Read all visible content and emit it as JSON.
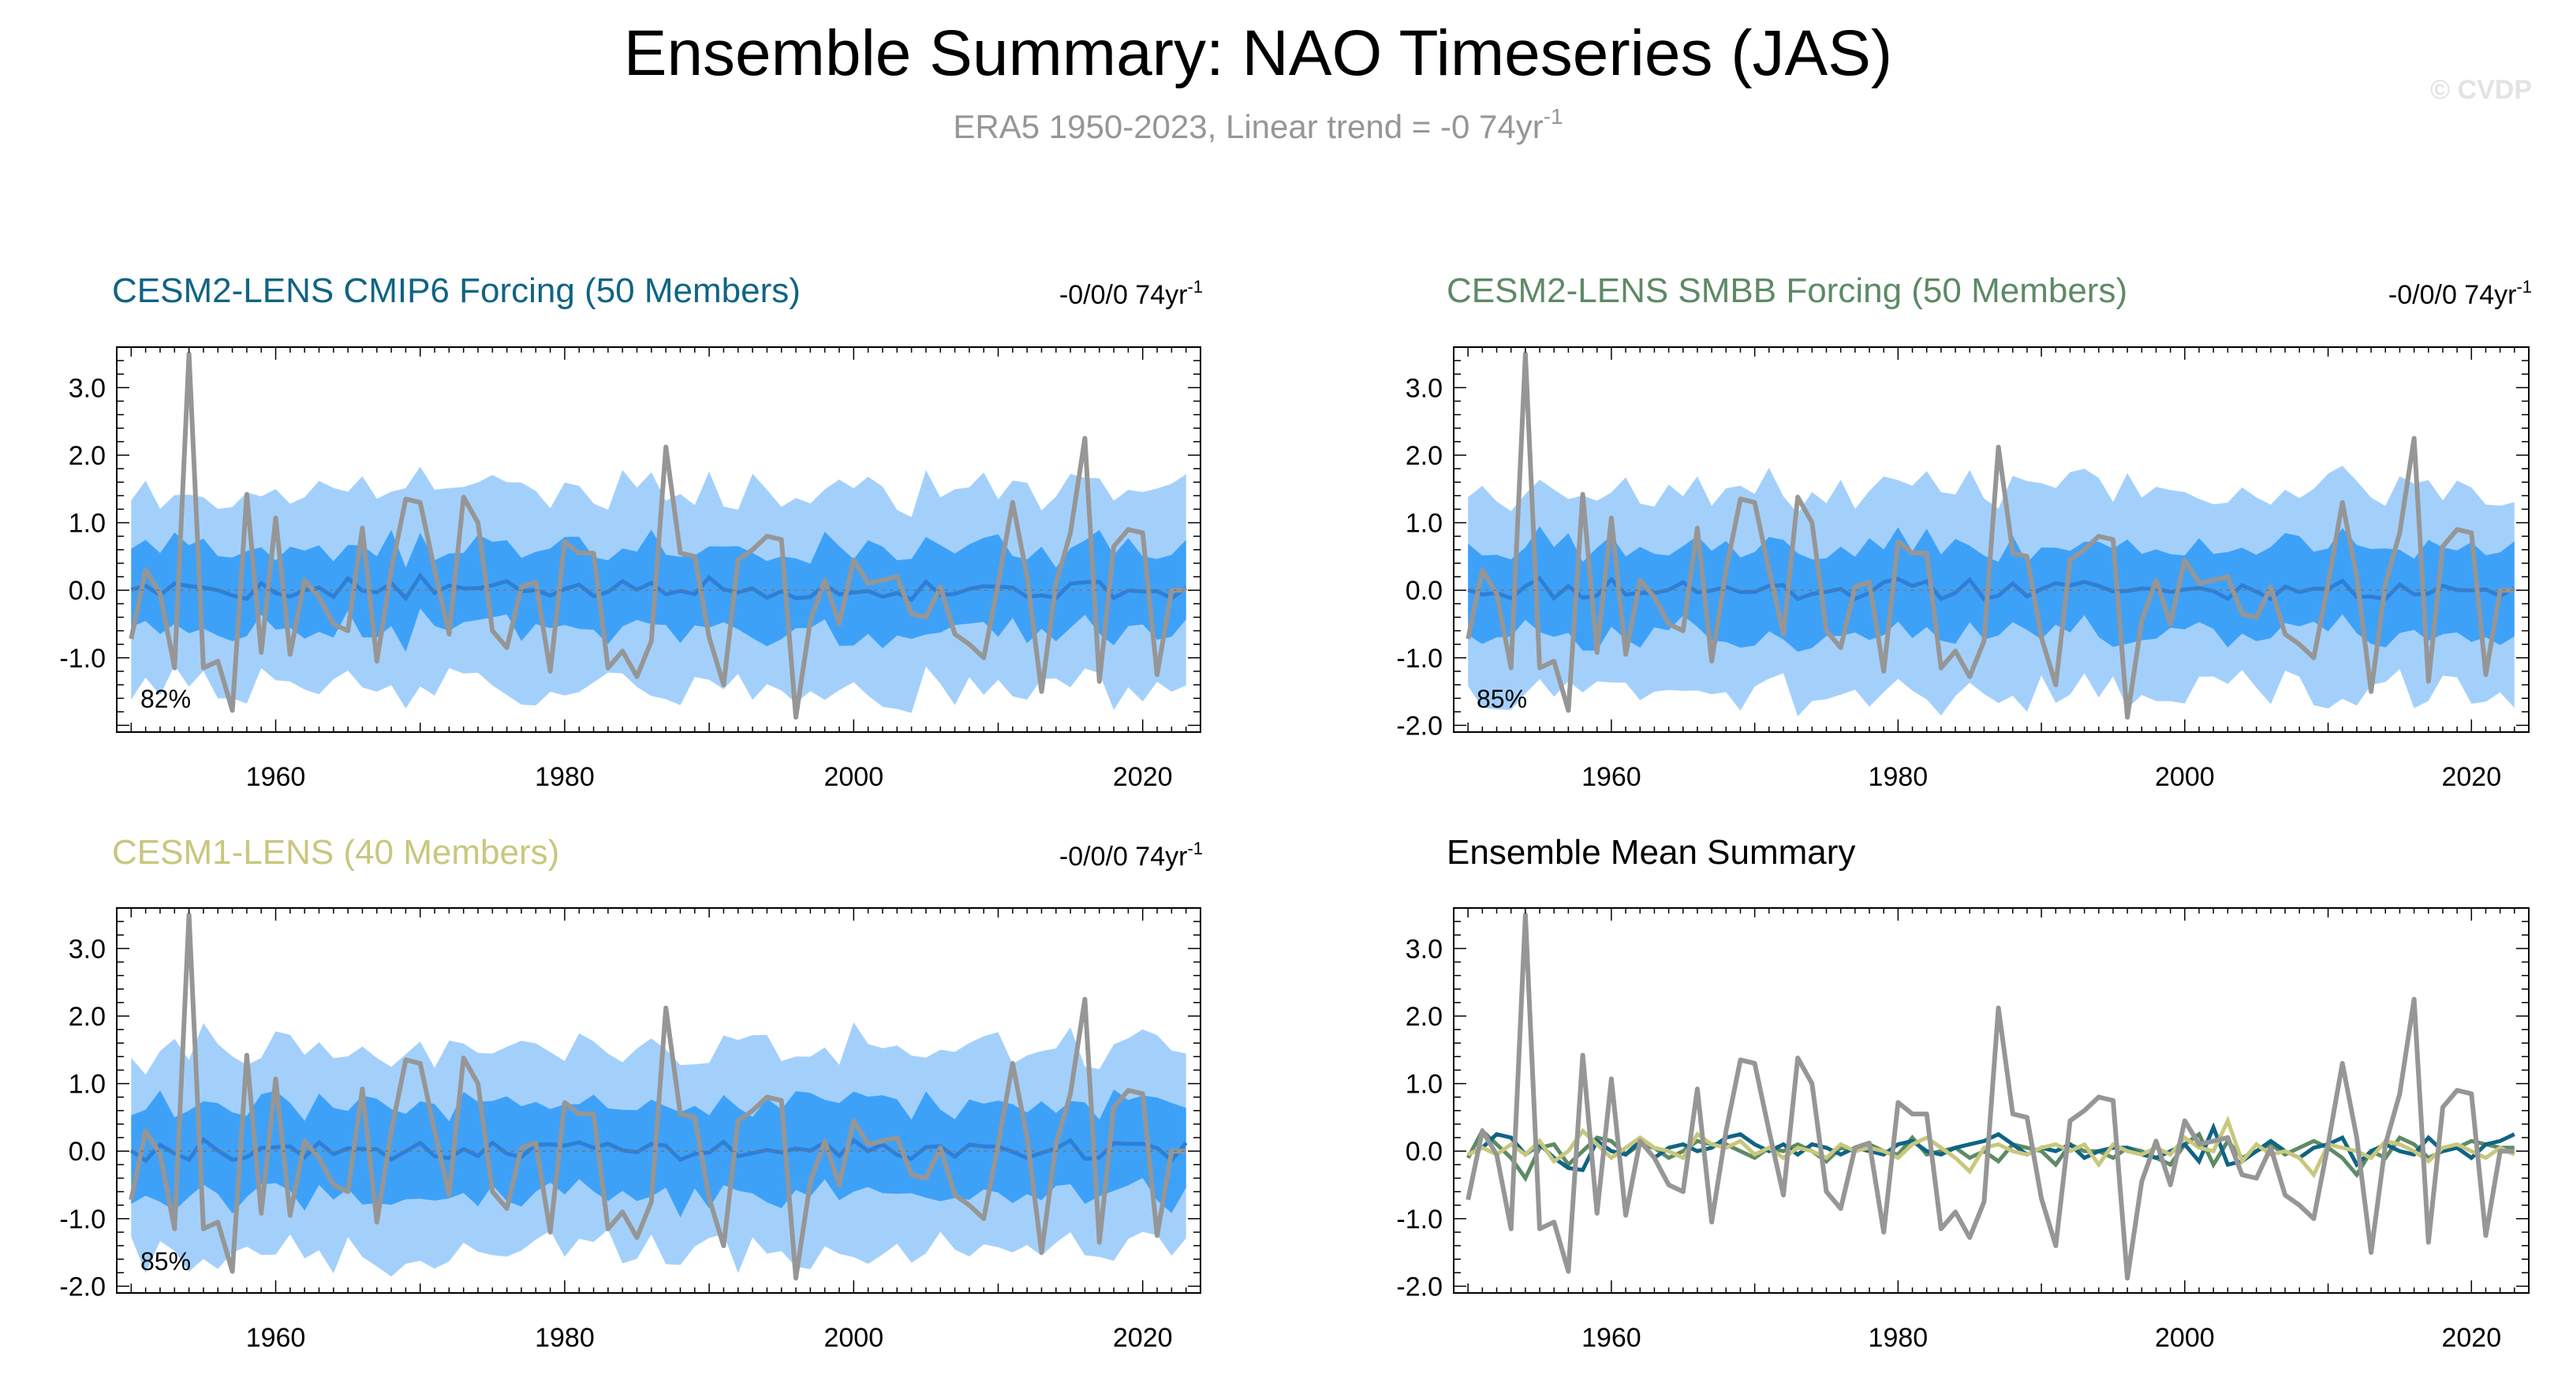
{
  "figure": {
    "title": "Ensemble Summary: NAO Timeseries (JAS)",
    "subtitle_main": "ERA5 1950-2023, Linear trend = -0 74yr",
    "subtitle_sup": "-1",
    "watermark": "© CVDP"
  },
  "colors": {
    "obs": "#969696",
    "band_outer": "#a3d0fb",
    "band_inner": "#3ea1f8",
    "ens_mean_line": "#2f7fd4",
    "cmip6": "#0f6483",
    "smbb": "#5d8a65",
    "cesm1": "#c8c77d"
  },
  "chart_data": [
    {
      "type": "line",
      "panel": "cmip6",
      "title": "CESM2-LENS CMIP6 Forcing (50 Members)",
      "title_color": "#0f6483",
      "trend_text": "-0/0/0 74yr",
      "trend_sup": "-1",
      "percent": "82%",
      "x_range": [
        1949,
        2024
      ],
      "ylim": [
        -2.1,
        3.6
      ],
      "y_ticks": [
        3.0,
        2.0,
        1.0,
        0.0,
        -1.0
      ],
      "y_tick_labels": [
        "3.0",
        "2.0",
        "1.0",
        "0.0",
        "-1.0"
      ],
      "x_ticks": [
        1960,
        1980,
        2000,
        2020
      ],
      "x_tick_labels": [
        "1960",
        "1980",
        "2000",
        "2020"
      ],
      "spread_seed": 17,
      "mean_seed": 5,
      "outer_base": 1.45,
      "inner_base": 0.62
    },
    {
      "type": "line",
      "panel": "smbb",
      "title": "CESM2-LENS SMBB Forcing (50 Members)",
      "title_color": "#5d8a65",
      "trend_text": "-0/0/0 74yr",
      "trend_sup": "-1",
      "percent": "85%",
      "x_range": [
        1949,
        2024
      ],
      "ylim": [
        -2.1,
        3.6
      ],
      "y_ticks": [
        3.0,
        2.0,
        1.0,
        0.0,
        -1.0,
        -2.0
      ],
      "y_tick_labels": [
        "3.0",
        "2.0",
        "1.0",
        "0.0",
        "-1.0",
        "-2.0"
      ],
      "x_ticks": [
        1960,
        1980,
        2000,
        2020
      ],
      "x_tick_labels": [
        "1960",
        "1980",
        "2000",
        "2020"
      ],
      "spread_seed": 23,
      "mean_seed": 11,
      "outer_base": 1.5,
      "inner_base": 0.66
    },
    {
      "type": "line",
      "panel": "cesm1",
      "title": "CESM1-LENS (40 Members)",
      "title_color": "#c8c77d",
      "trend_text": "-0/0/0 74yr",
      "trend_sup": "-1",
      "percent": "85%",
      "x_range": [
        1949,
        2024
      ],
      "ylim": [
        -2.1,
        3.6
      ],
      "y_ticks": [
        3.0,
        2.0,
        1.0,
        0.0,
        -1.0,
        -2.0
      ],
      "y_tick_labels": [
        "3.0",
        "2.0",
        "1.0",
        "0.0",
        "-1.0",
        "-2.0"
      ],
      "x_ticks": [
        1960,
        1980,
        2000,
        2020
      ],
      "x_tick_labels": [
        "1960",
        "1980",
        "2000",
        "2020"
      ],
      "spread_seed": 31,
      "mean_seed": 19,
      "outer_base": 1.5,
      "inner_base": 0.68
    },
    {
      "type": "line",
      "panel": "summary",
      "title": "Ensemble Mean Summary",
      "title_color": "#000000",
      "x_range": [
        1949,
        2024
      ],
      "ylim": [
        -2.1,
        3.6
      ],
      "y_ticks": [
        3.0,
        2.0,
        1.0,
        0.0,
        -1.0,
        -2.0
      ],
      "y_tick_labels": [
        "3.0",
        "2.0",
        "1.0",
        "0.0",
        "-1.0",
        "-2.0"
      ],
      "x_ticks": [
        1960,
        1980,
        2000,
        2020
      ],
      "x_tick_labels": [
        "1960",
        "1980",
        "2000",
        "2020"
      ]
    }
  ],
  "series": {
    "years_start": 1950,
    "years_end": 2023,
    "observed_era5": [
      -0.72,
      0.3,
      -0.05,
      -1.15,
      3.5,
      -1.15,
      -1.05,
      -1.78,
      1.42,
      -0.92,
      1.07,
      -0.95,
      0.15,
      -0.1,
      -0.5,
      -0.6,
      0.92,
      -1.05,
      0.3,
      1.35,
      1.3,
      0.3,
      -0.65,
      1.38,
      1.0,
      -0.6,
      -0.85,
      0.05,
      0.12,
      -1.2,
      0.72,
      0.55,
      0.55,
      -1.15,
      -0.9,
      -1.28,
      -0.75,
      2.12,
      0.55,
      0.5,
      -0.7,
      -1.4,
      0.45,
      0.6,
      0.8,
      0.75,
      -1.88,
      -0.45,
      0.15,
      -0.5,
      0.45,
      0.1,
      0.15,
      0.2,
      -0.35,
      -0.4,
      0.05,
      -0.65,
      -0.8,
      -1.0,
      0.1,
      1.3,
      0.2,
      -1.5,
      0.1,
      0.85,
      2.25,
      -1.35,
      0.65,
      0.9,
      0.85,
      -1.25,
      0.0,
      0.0
    ],
    "cmip6_mean": [
      -0.05,
      0.05,
      0.25,
      0.2,
      -0.05,
      0.1,
      -0.1,
      -0.25,
      -0.28,
      0.15,
      0.0,
      -0.05,
      0.15,
      -0.1,
      0.05,
      0.1,
      0.0,
      0.05,
      0.2,
      0.25,
      0.1,
      0.0,
      0.1,
      -0.05,
      0.1,
      0.05,
      -0.05,
      0.05,
      0.0,
      -0.05,
      0.1,
      0.15,
      0.0,
      -0.05,
      0.05,
      0.1,
      0.15,
      0.25,
      0.1,
      -0.05,
      0.05,
      0.0,
      0.1,
      -0.1,
      0.0,
      0.05,
      0.05,
      -0.05,
      -0.1,
      0.0,
      0.1,
      -0.15,
      0.35,
      -0.2,
      -0.15,
      0.0,
      0.15,
      0.0,
      -0.1,
      0.05,
      0.1,
      0.2,
      -0.2,
      0.0,
      0.1,
      0.0,
      -0.05,
      0.2,
      0.0,
      0.05,
      -0.1,
      0.1,
      0.15,
      0.25
    ],
    "smbb_mean": [
      -0.1,
      0.3,
      0.1,
      -0.1,
      -0.4,
      0.05,
      0.1,
      -0.2,
      0.0,
      0.2,
      0.15,
      -0.05,
      0.1,
      0.05,
      -0.1,
      0.0,
      0.15,
      0.1,
      0.1,
      0.0,
      -0.1,
      0.05,
      0.0,
      0.1,
      0.0,
      -0.15,
      0.05,
      0.0,
      0.1,
      0.0,
      -0.05,
      0.2,
      -0.05,
      0.0,
      0.05,
      -0.1,
      0.0,
      -0.15,
      0.1,
      0.05,
      0.0,
      -0.2,
      0.1,
      0.0,
      0.0,
      -0.1,
      0.05,
      0.0,
      -0.1,
      -0.2,
      0.1,
      0.25,
      -0.2,
      0.15,
      -0.1,
      0.0,
      0.1,
      -0.05,
      0.05,
      0.15,
      0.05,
      -0.1,
      -0.35,
      0.0,
      -0.1,
      0.2,
      0.1,
      -0.1,
      0.0,
      0.05,
      0.15,
      0.1,
      0.05,
      0.05
    ],
    "cesm1_mean": [
      -0.05,
      0.05,
      -0.05,
      0.1,
      -0.05,
      0.15,
      -0.15,
      0.0,
      0.3,
      0.1,
      -0.1,
      0.05,
      0.2,
      0.05,
      0.0,
      -0.1,
      0.25,
      0.1,
      0.05,
      0.15,
      -0.05,
      0.05,
      -0.1,
      0.05,
      0.0,
      -0.1,
      0.1,
      0.0,
      0.05,
      0.0,
      -0.1,
      0.1,
      0.2,
      0.05,
      -0.1,
      -0.3,
      0.05,
      0.1,
      0.0,
      -0.05,
      0.05,
      0.1,
      0.0,
      0.1,
      -0.2,
      0.1,
      0.0,
      -0.05,
      0.05,
      -0.05,
      0.2,
      0.05,
      0.0,
      0.45,
      -0.15,
      0.1,
      -0.05,
      0.0,
      -0.1,
      -0.35,
      0.1,
      0.05,
      0.0,
      -0.1,
      0.15,
      0.1,
      0.0,
      -0.15,
      0.05,
      0.1,
      0.0,
      -0.1,
      0.05,
      -0.05
    ]
  }
}
